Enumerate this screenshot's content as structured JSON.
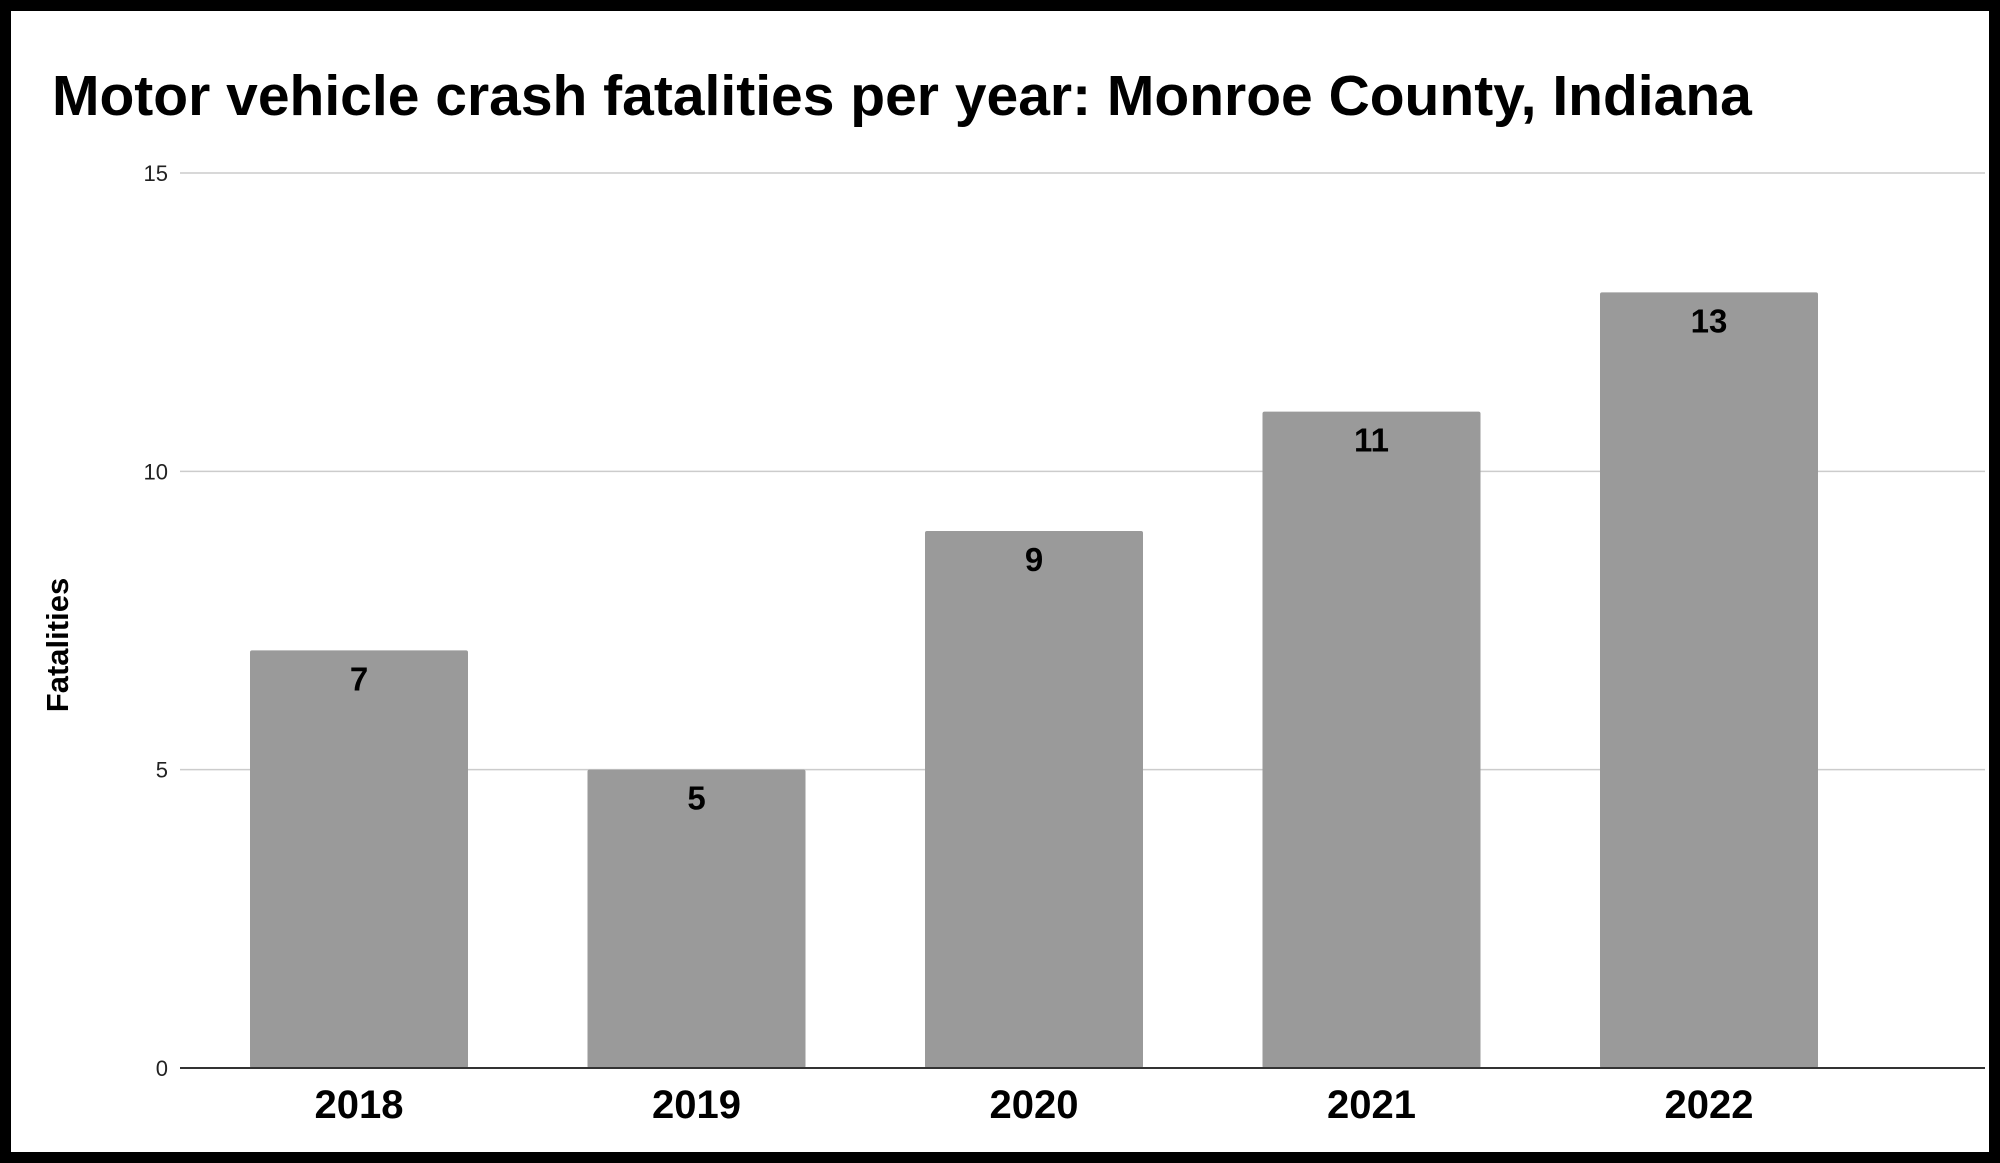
{
  "chart_data": {
    "type": "bar",
    "title": "Motor vehicle crash fatalities per year: Monroe County, Indiana",
    "xlabel": "",
    "ylabel": "Fatalities",
    "categories": [
      "2018",
      "2019",
      "2020",
      "2021",
      "2022"
    ],
    "values": [
      7,
      5,
      9,
      11,
      13
    ],
    "ylim": [
      0,
      15
    ],
    "yticks": [
      0,
      5,
      10,
      15
    ],
    "grid": true,
    "legend": "none",
    "colors": {
      "bar": "#9a9a9a",
      "grid": "#cccccc",
      "axis": "#333333",
      "background": "#ffffff",
      "border": "#000000"
    }
  }
}
